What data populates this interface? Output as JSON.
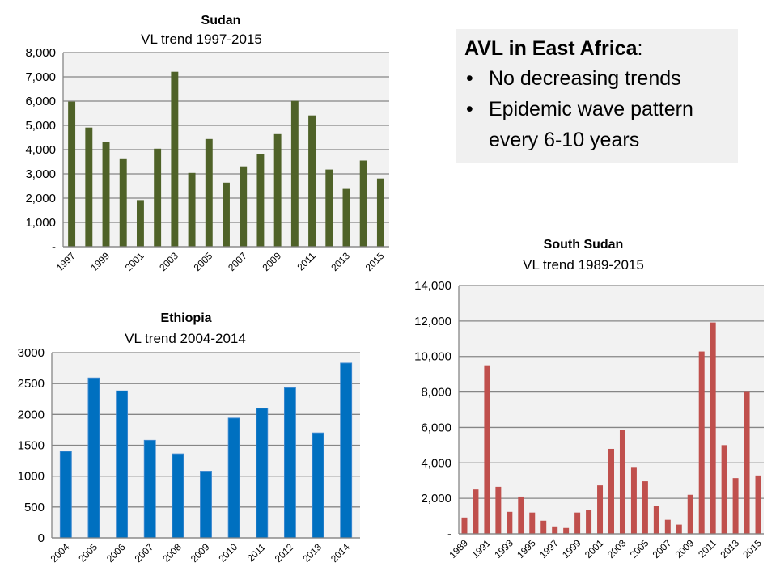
{
  "callout": {
    "title_bold": "AVL in East Africa",
    "title_suffix": ":",
    "bullets": [
      "No decreasing trends",
      "Epidemic wave pattern every 6-10 years"
    ],
    "bullet_glyph": "•"
  },
  "chart_data": [
    {
      "id": "sudan",
      "type": "bar",
      "title": "Sudan",
      "subtitle": "VL trend 1997-2015",
      "xlabel": "",
      "ylabel": "",
      "color": "#4f6228",
      "grid": true,
      "legend": "none",
      "ylim": [
        0,
        8000
      ],
      "yticks": [
        0,
        1000,
        2000,
        3000,
        4000,
        5000,
        6000,
        7000,
        8000
      ],
      "ytick_labels": [
        "-",
        "1,000",
        "2,000",
        "3,000",
        "4,000",
        "5,000",
        "6,000",
        "7,000",
        "8,000"
      ],
      "categories": [
        "1997",
        "1998",
        "1999",
        "2000",
        "2001",
        "2002",
        "2003",
        "2004",
        "2005",
        "2006",
        "2007",
        "2008",
        "2009",
        "2010",
        "2011",
        "2012",
        "2013",
        "2014",
        "2015"
      ],
      "xtick_labels_shown": [
        "1997",
        "1999",
        "2001",
        "2003",
        "2005",
        "2007",
        "2009",
        "2011",
        "2013",
        "2015"
      ],
      "values": [
        5980,
        4910,
        4310,
        3640,
        1920,
        4040,
        7210,
        3040,
        4440,
        2640,
        3310,
        3810,
        4640,
        6010,
        5410,
        3180,
        2380,
        3550,
        2810
      ]
    },
    {
      "id": "ethiopia",
      "type": "bar",
      "title": "Ethiopia",
      "subtitle": "VL trend 2004-2014",
      "xlabel": "",
      "ylabel": "",
      "color": "#0070c0",
      "grid": true,
      "legend": "none",
      "ylim": [
        0,
        3000
      ],
      "yticks": [
        0,
        500,
        1000,
        1500,
        2000,
        2500,
        3000
      ],
      "ytick_labels": [
        "0",
        "500",
        "1000",
        "1500",
        "2000",
        "2500",
        "3000"
      ],
      "categories": [
        "2004",
        "2005",
        "2006",
        "2007",
        "2008",
        "2009",
        "2010",
        "2011",
        "2012",
        "2013",
        "2014"
      ],
      "xtick_labels_shown": [
        "2004",
        "2005",
        "2006",
        "2007",
        "2008",
        "2009",
        "2010",
        "2011",
        "2012",
        "2013",
        "2014"
      ],
      "values": [
        1400,
        2590,
        2380,
        1580,
        1360,
        1080,
        1940,
        2100,
        2430,
        1700,
        2830
      ]
    },
    {
      "id": "south-sudan",
      "type": "bar",
      "title": "South Sudan",
      "subtitle": "VL trend 1989-2015",
      "xlabel": "",
      "ylabel": "",
      "color": "#c0504d",
      "grid": true,
      "legend": "none",
      "ylim": [
        0,
        14000
      ],
      "yticks": [
        0,
        2000,
        4000,
        6000,
        8000,
        10000,
        12000,
        14000
      ],
      "ytick_labels": [
        "-",
        "2,000",
        "4,000",
        "6,000",
        "8,000",
        "10,000",
        "12,000",
        "14,000"
      ],
      "categories": [
        "1989",
        "1990",
        "1991",
        "1992",
        "1993",
        "1994",
        "1995",
        "1996",
        "1997",
        "1998",
        "1999",
        "2000",
        "2001",
        "2002",
        "2003",
        "2004",
        "2005",
        "2006",
        "2007",
        "2008",
        "2009",
        "2010",
        "2011",
        "2012",
        "2013",
        "2014",
        "2015"
      ],
      "xtick_labels_shown": [
        "1989",
        "1991",
        "1993",
        "1995",
        "1997",
        "1999",
        "2001",
        "2003",
        "2005",
        "2007",
        "2009",
        "2011",
        "2013",
        "2015"
      ],
      "values": [
        920,
        2500,
        9500,
        2650,
        1240,
        2100,
        1200,
        740,
        420,
        330,
        1200,
        1340,
        2730,
        4790,
        5880,
        3770,
        2960,
        1570,
        790,
        520,
        2200,
        10280,
        11920,
        5000,
        3140,
        8000,
        3290
      ]
    }
  ]
}
